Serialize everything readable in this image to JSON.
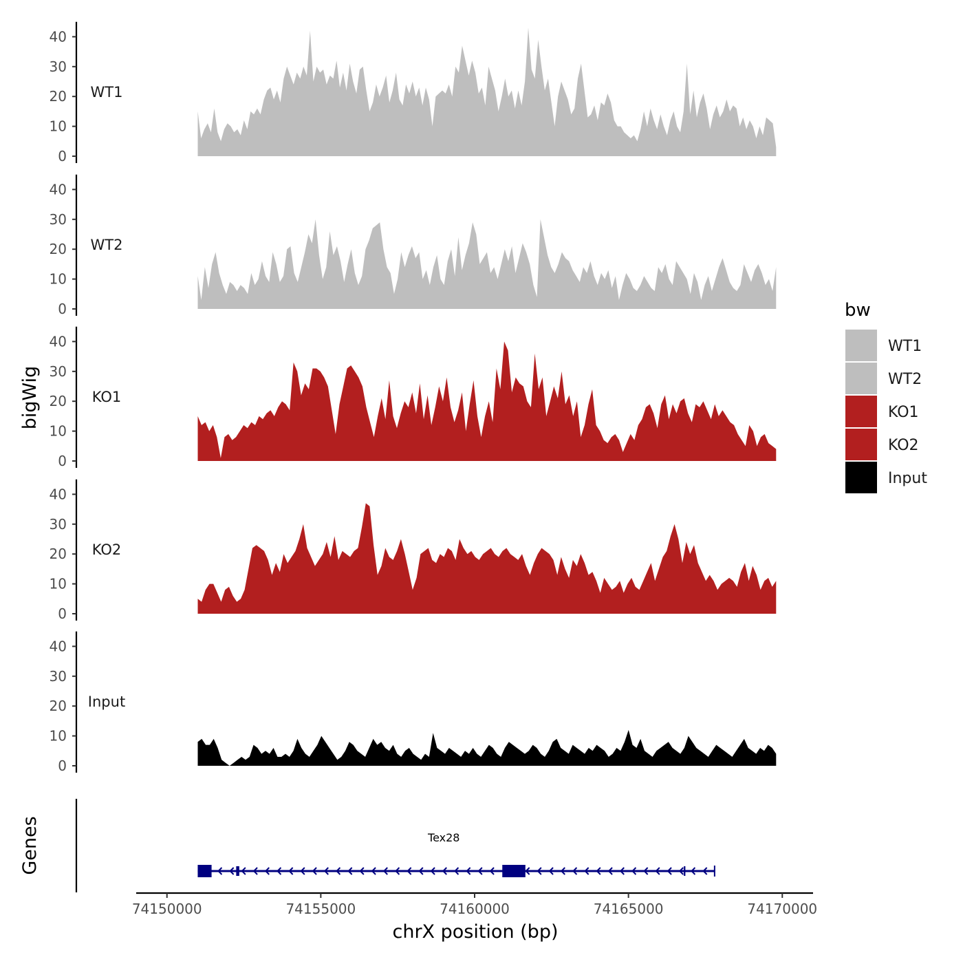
{
  "chart_data": {
    "type": "area",
    "title": "",
    "ylabel": "bigWig",
    "xlabel": "chrX position (bp)",
    "ylim": [
      0,
      45
    ],
    "xlim": [
      74149000,
      74171000
    ],
    "x_ticks": [
      74150000,
      74155000,
      74160000,
      74165000,
      74170000
    ],
    "x_tick_labels": [
      "74150000",
      "74155000",
      "74160000",
      "74165000",
      "74170000"
    ],
    "y_ticks": [
      0,
      10,
      20,
      30,
      40
    ],
    "y_tick_labels": [
      "0",
      "10",
      "20",
      "30",
      "40"
    ],
    "data_range": [
      74151000,
      74169800
    ],
    "legend": {
      "title": "bw",
      "placement": "right",
      "entries": [
        {
          "label": "WT1",
          "color": "#bebebe"
        },
        {
          "label": "WT2",
          "color": "#bebebe"
        },
        {
          "label": "KO1",
          "color": "#b21f1f"
        },
        {
          "label": "KO2",
          "color": "#b21f1f"
        },
        {
          "label": "Input",
          "color": "#000000"
        }
      ]
    },
    "series": [
      {
        "name": "WT1",
        "color": "#bebebe",
        "values": [
          15,
          6,
          9,
          11,
          8,
          16,
          8,
          5,
          9,
          11,
          10,
          8,
          9,
          7,
          12,
          9,
          15,
          14,
          16,
          14,
          19,
          22,
          23,
          19,
          22,
          18,
          26,
          30,
          27,
          24,
          28,
          26,
          30,
          27,
          42,
          25,
          30,
          28,
          29,
          24,
          27,
          26,
          32,
          23,
          28,
          22,
          31,
          25,
          21,
          29,
          30,
          22,
          15,
          18,
          24,
          20,
          23,
          27,
          18,
          22,
          28,
          19,
          17,
          24,
          21,
          25,
          20,
          23,
          17,
          23,
          19,
          10,
          20,
          21,
          22,
          21,
          24,
          20,
          30,
          28,
          37,
          32,
          27,
          32,
          28,
          21,
          23,
          17,
          30,
          26,
          22,
          15,
          20,
          26,
          20,
          22,
          16,
          22,
          17,
          25,
          43,
          29,
          26,
          39,
          30,
          22,
          26,
          18,
          10,
          20,
          25,
          22,
          19,
          14,
          16,
          26,
          31,
          22,
          13,
          14,
          17,
          12,
          18,
          17,
          21,
          18,
          12,
          10,
          10,
          8,
          7,
          6,
          7,
          5,
          9,
          15,
          10,
          16,
          12,
          9,
          14,
          10,
          7,
          12,
          15,
          10,
          8,
          15,
          31,
          14,
          22,
          13,
          18,
          21,
          16,
          9,
          14,
          17,
          13,
          15,
          19,
          15,
          17,
          16,
          10,
          13,
          9,
          12,
          10,
          6,
          10,
          7,
          13,
          12,
          11,
          3
        ]
      },
      {
        "name": "WT2",
        "color": "#bebebe",
        "values": [
          11,
          3,
          14,
          7,
          15,
          19,
          12,
          8,
          5,
          9,
          8,
          6,
          8,
          7,
          5,
          12,
          8,
          10,
          16,
          11,
          9,
          19,
          15,
          9,
          11,
          20,
          21,
          12,
          9,
          14,
          19,
          25,
          22,
          30,
          18,
          10,
          14,
          26,
          18,
          21,
          16,
          9,
          15,
          20,
          12,
          8,
          11,
          20,
          23,
          27,
          28,
          29,
          20,
          14,
          12,
          5,
          10,
          19,
          14,
          18,
          21,
          17,
          19,
          10,
          13,
          8,
          14,
          18,
          10,
          8,
          16,
          20,
          11,
          24,
          13,
          18,
          22,
          29,
          25,
          15,
          17,
          19,
          12,
          14,
          10,
          15,
          20,
          16,
          21,
          12,
          17,
          22,
          19,
          15,
          8,
          4,
          30,
          24,
          18,
          14,
          12,
          15,
          19,
          17,
          16,
          13,
          11,
          9,
          14,
          12,
          16,
          11,
          8,
          12,
          10,
          13,
          7,
          11,
          3,
          8,
          12,
          10,
          7,
          6,
          8,
          11,
          9,
          7,
          6,
          14,
          12,
          15,
          10,
          8,
          16,
          14,
          12,
          10,
          5,
          12,
          9,
          3,
          8,
          11,
          6,
          10,
          14,
          17,
          13,
          9,
          7,
          6,
          8,
          15,
          12,
          9,
          13,
          15,
          12,
          8,
          10,
          6,
          14
        ]
      },
      {
        "name": "KO1",
        "color": "#b21f1f",
        "values": [
          15,
          12,
          13,
          10,
          12,
          8,
          1,
          8,
          9,
          7,
          8,
          10,
          12,
          11,
          13,
          12,
          15,
          14,
          16,
          17,
          15,
          18,
          20,
          19,
          17,
          33,
          30,
          22,
          26,
          24,
          31,
          31,
          30,
          28,
          25,
          17,
          9,
          19,
          25,
          31,
          32,
          30,
          28,
          25,
          18,
          13,
          8,
          15,
          21,
          14,
          27,
          15,
          11,
          16,
          20,
          18,
          23,
          16,
          26,
          14,
          22,
          12,
          18,
          25,
          20,
          28,
          18,
          13,
          17,
          23,
          10,
          19,
          27,
          15,
          8,
          15,
          20,
          13,
          31,
          24,
          40,
          37,
          23,
          28,
          26,
          25,
          20,
          18,
          36,
          24,
          28,
          15,
          20,
          25,
          21,
          30,
          19,
          22,
          15,
          20,
          8,
          12,
          19,
          24,
          12,
          10,
          7,
          6,
          8,
          9,
          7,
          3,
          6,
          9,
          7,
          12,
          14,
          18,
          19,
          16,
          11,
          19,
          22,
          14,
          19,
          16,
          20,
          21,
          16,
          13,
          19,
          18,
          20,
          17,
          14,
          19,
          15,
          17,
          15,
          13,
          12,
          9,
          7,
          5,
          12,
          10,
          5,
          8,
          9,
          6,
          5,
          4
        ]
      },
      {
        "name": "KO2",
        "color": "#b21f1f",
        "values": [
          5,
          4,
          8,
          10,
          10,
          7,
          4,
          8,
          9,
          6,
          4,
          5,
          8,
          15,
          22,
          23,
          22,
          21,
          18,
          13,
          17,
          14,
          20,
          17,
          19,
          21,
          25,
          30,
          22,
          19,
          16,
          18,
          20,
          24,
          19,
          26,
          18,
          21,
          20,
          19,
          21,
          22,
          29,
          37,
          36,
          23,
          13,
          16,
          22,
          19,
          18,
          21,
          25,
          20,
          14,
          8,
          12,
          20,
          21,
          22,
          18,
          17,
          20,
          19,
          22,
          21,
          18,
          25,
          22,
          20,
          21,
          19,
          18,
          20,
          21,
          22,
          20,
          19,
          21,
          22,
          20,
          19,
          18,
          20,
          16,
          13,
          17,
          20,
          22,
          21,
          20,
          18,
          13,
          19,
          15,
          12,
          18,
          16,
          20,
          17,
          13,
          14,
          11,
          7,
          12,
          10,
          8,
          9,
          11,
          7,
          10,
          12,
          9,
          8,
          11,
          14,
          17,
          11,
          15,
          19,
          21,
          26,
          30,
          25,
          17,
          24,
          20,
          23,
          17,
          14,
          11,
          13,
          11,
          8,
          10,
          11,
          12,
          11,
          9,
          14,
          17,
          11,
          16,
          13,
          8,
          11,
          12,
          9,
          11
        ]
      },
      {
        "name": "Input",
        "color": "#000000",
        "values": [
          8,
          9,
          7,
          7,
          9,
          6,
          2,
          1,
          0,
          1,
          2,
          3,
          2,
          3,
          7,
          6,
          4,
          5,
          4,
          6,
          3,
          3,
          4,
          3,
          5,
          9,
          6,
          4,
          3,
          5,
          7,
          10,
          8,
          6,
          4,
          2,
          3,
          5,
          8,
          7,
          5,
          4,
          3,
          6,
          9,
          7,
          8,
          6,
          5,
          7,
          4,
          3,
          5,
          6,
          4,
          3,
          2,
          4,
          3,
          11,
          6,
          5,
          4,
          6,
          5,
          4,
          3,
          5,
          4,
          6,
          4,
          3,
          5,
          7,
          6,
          4,
          3,
          6,
          8,
          7,
          6,
          5,
          4,
          5,
          7,
          6,
          4,
          3,
          5,
          8,
          9,
          6,
          5,
          4,
          7,
          6,
          5,
          4,
          6,
          5,
          7,
          6,
          5,
          3,
          4,
          6,
          5,
          8,
          12,
          7,
          6,
          9,
          5,
          4,
          3,
          5,
          6,
          7,
          8,
          6,
          5,
          4,
          6,
          10,
          8,
          6,
          5,
          4,
          3,
          5,
          7,
          6,
          5,
          4,
          3,
          5,
          7,
          9,
          6,
          5,
          4,
          6,
          5,
          7,
          6,
          4
        ]
      }
    ],
    "genes": [
      {
        "name": "Tex28",
        "start": 74151000,
        "end": 74167800,
        "strand": "-",
        "exons": [
          [
            74151000,
            74151450
          ],
          [
            74152250,
            74152350
          ],
          [
            74160900,
            74161650
          ],
          [
            74166800,
            74166850
          ]
        ],
        "label_position": 74159000
      }
    ]
  }
}
